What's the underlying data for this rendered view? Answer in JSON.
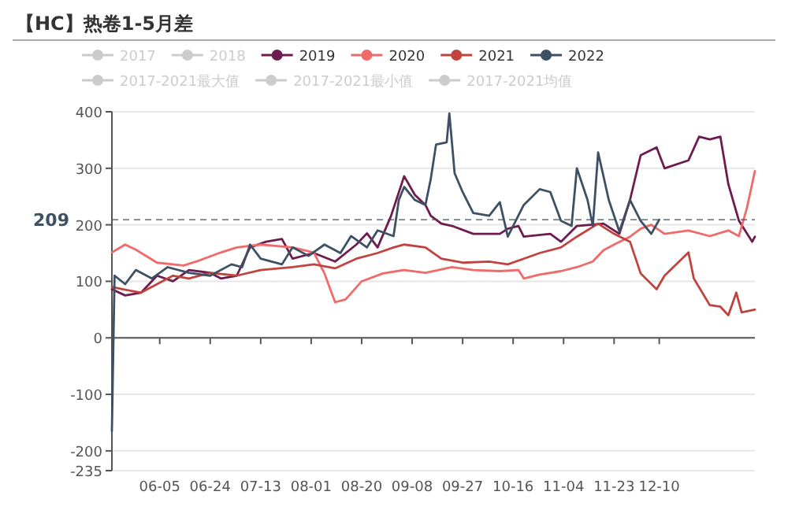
{
  "chart_data": {
    "type": "line",
    "title": "【HC】热卷1-5月差",
    "xlim": [
      "2022-05-18",
      "2023-01-15"
    ],
    "xticks": [
      {
        "value": "2022-06-05",
        "label": "06-05"
      },
      {
        "value": "2022-06-24",
        "label": "06-24"
      },
      {
        "value": "2022-07-13",
        "label": "07-13"
      },
      {
        "value": "2022-08-01",
        "label": "08-01"
      },
      {
        "value": "2022-08-20",
        "label": "08-20"
      },
      {
        "value": "2022-09-08",
        "label": "09-08"
      },
      {
        "value": "2022-09-27",
        "label": "09-27"
      },
      {
        "value": "2022-10-16",
        "label": "10-16"
      },
      {
        "value": "2022-11-04",
        "label": "11-04"
      },
      {
        "value": "2022-11-23",
        "label": "11-23"
      },
      {
        "value": "2022-12-10",
        "label": "12-10"
      }
    ],
    "ylim": [
      -235,
      400
    ],
    "yticks": [
      400,
      300,
      200,
      100,
      0,
      -100,
      -200,
      -235
    ],
    "grid": "y",
    "legend": "top",
    "ref_lines": [
      {
        "axis": "y",
        "value": 209,
        "label": "209",
        "color": "#3e5063",
        "line_style": "dashed"
      }
    ],
    "series": [
      {
        "name": "2017",
        "color": "#cccccc"
      },
      {
        "name": "2018",
        "color": "#cccccc"
      },
      {
        "name": "2019",
        "color": "#6e1b50",
        "x": [
          "2022-05-18",
          "2022-05-23",
          "2022-05-29",
          "2022-06-04",
          "2022-06-10",
          "2022-06-16",
          "2022-06-24",
          "2022-06-28",
          "2022-07-04",
          "2022-07-08",
          "2022-07-09",
          "2022-07-15",
          "2022-07-21",
          "2022-07-25",
          "2022-08-02",
          "2022-08-10",
          "2022-08-18",
          "2022-08-22",
          "2022-08-26",
          "2022-08-31",
          "2022-09-05",
          "2022-09-09",
          "2022-09-13",
          "2022-09-15",
          "2022-09-19",
          "2022-09-23",
          "2022-10-01",
          "2022-10-11",
          "2022-10-14",
          "2022-10-18",
          "2022-10-20",
          "2022-10-30",
          "2022-11-03",
          "2022-11-09",
          "2022-11-19",
          "2022-11-25",
          "2022-11-29",
          "2022-12-03",
          "2022-12-09",
          "2022-12-12",
          "2022-12-21",
          "2022-12-25",
          "2022-12-29",
          "2023-01-02",
          "2023-01-05",
          "2023-01-09",
          "2023-01-14",
          "2023-01-15"
        ],
        "values": [
          86,
          75,
          80,
          110,
          100,
          120,
          115,
          105,
          110,
          150,
          160,
          170,
          175,
          140,
          150,
          135,
          165,
          185,
          160,
          215,
          286,
          253,
          235,
          216,
          202,
          198,
          184,
          184,
          193,
          198,
          179,
          184,
          170,
          198,
          202,
          184,
          244,
          323,
          337,
          300,
          314,
          356,
          351,
          356,
          272,
          207,
          170,
          179
        ]
      },
      {
        "name": "2020",
        "color": "#f06a6a",
        "x": [
          "2022-05-18",
          "2022-05-23",
          "2022-05-27",
          "2022-06-04",
          "2022-06-14",
          "2022-06-20",
          "2022-06-28",
          "2022-07-04",
          "2022-07-13",
          "2022-07-25",
          "2022-08-02",
          "2022-08-06",
          "2022-08-10",
          "2022-08-14",
          "2022-08-20",
          "2022-08-28",
          "2022-09-05",
          "2022-09-13",
          "2022-09-23",
          "2022-10-01",
          "2022-10-11",
          "2022-10-18",
          "2022-10-20",
          "2022-10-26",
          "2022-11-03",
          "2022-11-09",
          "2022-11-15",
          "2022-11-19",
          "2022-11-23",
          "2022-11-29",
          "2022-12-03",
          "2022-12-07",
          "2022-12-12",
          "2022-12-21",
          "2022-12-29",
          "2023-01-05",
          "2023-01-09",
          "2023-01-12",
          "2023-01-15"
        ],
        "values": [
          151,
          165,
          156,
          133,
          128,
          137,
          151,
          160,
          165,
          160,
          151,
          114,
          63,
          68,
          100,
          114,
          120,
          115,
          125,
          120,
          118,
          120,
          105,
          112,
          118,
          125,
          135,
          155,
          165,
          179,
          193,
          200,
          184,
          190,
          180,
          190,
          180,
          230,
          295
        ]
      },
      {
        "name": "2021",
        "color": "#c0433f",
        "x": [
          "2022-05-18",
          "2022-05-23",
          "2022-05-29",
          "2022-06-04",
          "2022-06-10",
          "2022-06-16",
          "2022-06-24",
          "2022-07-04",
          "2022-07-13",
          "2022-07-25",
          "2022-08-02",
          "2022-08-10",
          "2022-08-18",
          "2022-08-26",
          "2022-09-01",
          "2022-09-05",
          "2022-09-13",
          "2022-09-19",
          "2022-09-27",
          "2022-10-07",
          "2022-10-14",
          "2022-10-20",
          "2022-10-26",
          "2022-11-03",
          "2022-11-09",
          "2022-11-17",
          "2022-11-23",
          "2022-11-29",
          "2022-12-03",
          "2022-12-09",
          "2022-12-12",
          "2022-12-21",
          "2022-12-23",
          "2022-12-29",
          "2023-01-02",
          "2023-01-05",
          "2023-01-08",
          "2023-01-10",
          "2023-01-15"
        ],
        "values": [
          90,
          85,
          80,
          95,
          110,
          105,
          115,
          110,
          120,
          125,
          130,
          123,
          140,
          150,
          160,
          165,
          160,
          140,
          133,
          135,
          130,
          140,
          150,
          160,
          179,
          202,
          184,
          170,
          114,
          86,
          110,
          151,
          105,
          58,
          55,
          40,
          80,
          45,
          50
        ]
      },
      {
        "name": "2022",
        "color": "#3e5063",
        "x": [
          "2022-05-18",
          "2022-05-19",
          "2022-05-23",
          "2022-05-27",
          "2022-06-02",
          "2022-06-08",
          "2022-06-16",
          "2022-06-24",
          "2022-07-02",
          "2022-07-06",
          "2022-07-09",
          "2022-07-13",
          "2022-07-21",
          "2022-07-25",
          "2022-07-31",
          "2022-08-06",
          "2022-08-12",
          "2022-08-16",
          "2022-08-22",
          "2022-08-26",
          "2022-09-01",
          "2022-09-03",
          "2022-09-05",
          "2022-09-09",
          "2022-09-13",
          "2022-09-15",
          "2022-09-17",
          "2022-09-21",
          "2022-09-22",
          "2022-09-24",
          "2022-09-27",
          "2022-10-01",
          "2022-10-07",
          "2022-10-11",
          "2022-10-14",
          "2022-10-20",
          "2022-10-26",
          "2022-10-30",
          "2022-11-03",
          "2022-11-07",
          "2022-11-09",
          "2022-11-13",
          "2022-11-15",
          "2022-11-17",
          "2022-11-21",
          "2022-11-25",
          "2022-11-29",
          "2022-12-03",
          "2022-12-07",
          "2022-12-10"
        ],
        "values": [
          -165,
          110,
          95,
          120,
          105,
          125,
          115,
          110,
          130,
          125,
          165,
          140,
          130,
          160,
          145,
          165,
          150,
          180,
          160,
          190,
          180,
          244,
          267,
          244,
          235,
          281,
          342,
          346,
          397,
          291,
          258,
          221,
          216,
          240,
          179,
          235,
          263,
          258,
          207,
          198,
          300,
          244,
          198,
          328,
          244,
          188,
          244,
          207,
          184,
          209
        ]
      },
      {
        "name": "2017-2021最大值",
        "color": "#cccccc"
      },
      {
        "name": "2017-2021最小值",
        "color": "#cccccc"
      },
      {
        "name": "2017-2021均值",
        "color": "#cccccc"
      }
    ]
  }
}
